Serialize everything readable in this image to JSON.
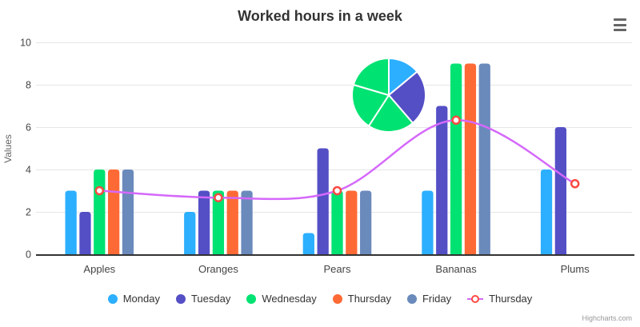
{
  "header": {
    "title": "Worked hours in a week",
    "menu_icon": "hamburger-icon"
  },
  "chart_data": {
    "type": "combo",
    "subtypes": [
      "column",
      "spline",
      "pie"
    ],
    "title": "Worked hours in a week",
    "categories": [
      "Apples",
      "Oranges",
      "Pears",
      "Bananas",
      "Plums"
    ],
    "series": [
      {
        "name": "Monday",
        "type": "column",
        "color": "#2caffe",
        "values": [
          3,
          2,
          1,
          3,
          4
        ]
      },
      {
        "name": "Tuesday",
        "type": "column",
        "color": "#544fc5",
        "values": [
          2,
          3,
          5,
          7,
          6
        ]
      },
      {
        "name": "Wednesday",
        "type": "column",
        "color": "#00e272",
        "values": [
          4,
          3,
          3,
          9,
          0
        ]
      },
      {
        "name": "Thursday",
        "type": "column",
        "color": "#fe6a35",
        "values": [
          4,
          3,
          3,
          9,
          0
        ]
      },
      {
        "name": "Friday",
        "type": "column",
        "color": "#6b8abc",
        "values": [
          4,
          3,
          3,
          9,
          0
        ]
      },
      {
        "name": "Thursday",
        "type": "spline",
        "color": "#d568fb",
        "marker": {
          "fill": "#ffffff",
          "stroke": "#fa4b42"
        },
        "values": [
          3,
          2.67,
          3,
          6.33,
          3.33
        ]
      }
    ],
    "pie": {
      "values": [
        13,
        23,
        19,
        19,
        19
      ],
      "colors": [
        "#2caffe",
        "#544fc5",
        "#00e272",
        "#00e272",
        "#00e272"
      ],
      "border_color": "#ffffff"
    },
    "yaxis": {
      "label": "Values",
      "ticks": [
        0,
        2,
        4,
        6,
        8,
        10
      ],
      "lim": [
        0,
        10
      ]
    },
    "grid": true,
    "grid_color": "#e6e6e6",
    "axis_line_color": "#333333",
    "label_color": "#444444",
    "legend_position": "bottom"
  },
  "credits": {
    "label": "Highcharts.com"
  }
}
